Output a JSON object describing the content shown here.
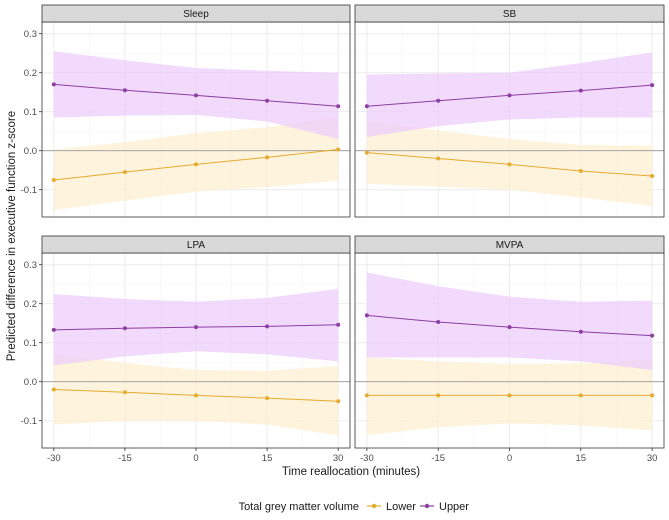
{
  "chart_data": {
    "type": "line",
    "xlabel": "Time reallocation (minutes)",
    "ylabel": "Predicted difference in executive function z-score",
    "x": [
      -30,
      -15,
      0,
      15,
      30
    ],
    "x_tick_labels": [
      "-30",
      "-15",
      "0",
      "15",
      "30"
    ],
    "xlim": [
      -32.5,
      32.5
    ],
    "ylim": [
      -0.17,
      0.33
    ],
    "y_ticks": [
      -0.1,
      0.0,
      0.1,
      0.2,
      0.3
    ],
    "y_tick_labels": [
      "-0.1",
      "0.0",
      "0.1",
      "0.2",
      "0.3"
    ],
    "reference_line": 0,
    "legend": {
      "title": "Total grey matter volume",
      "position": "bottom",
      "entries": [
        {
          "name": "Lower",
          "color": "#e6ab2e"
        },
        {
          "name": "Upper",
          "color": "#8e3da3"
        }
      ]
    },
    "colors": {
      "lower_line": "#e6ab2e",
      "lower_band": "#fdefd2",
      "upper_line": "#8e3da3",
      "upper_band": "#eccdfb",
      "strip_fill": "#d9d9d9",
      "panel_border": "#333333",
      "grid_major": "#ebebeb",
      "grid_minor": "#f5f5f5",
      "zero_line": "#9a9a9a"
    },
    "panels": [
      {
        "title": "Sleep",
        "series": [
          {
            "name": "Upper",
            "values": [
              0.17,
              0.155,
              0.142,
              0.128,
              0.114
            ],
            "lower": [
              0.085,
              0.09,
              0.092,
              0.075,
              0.03
            ],
            "upper": [
              0.255,
              0.232,
              0.212,
              0.205,
              0.2
            ]
          },
          {
            "name": "Lower",
            "values": [
              -0.075,
              -0.055,
              -0.035,
              -0.017,
              0.003
            ],
            "lower": [
              -0.152,
              -0.128,
              -0.105,
              -0.093,
              -0.077
            ],
            "upper": [
              0.003,
              0.022,
              0.045,
              0.06,
              0.086
            ]
          }
        ]
      },
      {
        "title": "SB",
        "series": [
          {
            "name": "Upper",
            "values": [
              0.114,
              0.128,
              0.142,
              0.154,
              0.168
            ],
            "lower": [
              0.035,
              0.063,
              0.08,
              0.085,
              0.085
            ],
            "upper": [
              0.195,
              0.198,
              0.2,
              0.225,
              0.252
            ]
          },
          {
            "name": "Lower",
            "values": [
              -0.005,
              -0.02,
              -0.035,
              -0.052,
              -0.065
            ],
            "lower": [
              -0.085,
              -0.092,
              -0.1,
              -0.12,
              -0.142
            ],
            "upper": [
              0.075,
              0.052,
              0.03,
              0.015,
              0.012
            ]
          }
        ]
      },
      {
        "title": "LPA",
        "series": [
          {
            "name": "Upper",
            "values": [
              0.133,
              0.137,
              0.14,
              0.142,
              0.146
            ],
            "lower": [
              0.042,
              0.065,
              0.078,
              0.07,
              0.052
            ],
            "upper": [
              0.225,
              0.212,
              0.205,
              0.215,
              0.238
            ]
          },
          {
            "name": "Lower",
            "values": [
              -0.02,
              -0.027,
              -0.035,
              -0.042,
              -0.05
            ],
            "lower": [
              -0.11,
              -0.1,
              -0.1,
              -0.11,
              -0.138
            ],
            "upper": [
              0.072,
              0.048,
              0.03,
              0.028,
              0.04
            ]
          }
        ]
      },
      {
        "title": "MVPA",
        "series": [
          {
            "name": "Upper",
            "values": [
              0.17,
              0.153,
              0.14,
              0.128,
              0.118
            ],
            "lower": [
              0.062,
              0.062,
              0.062,
              0.052,
              0.03
            ],
            "upper": [
              0.28,
              0.245,
              0.218,
              0.205,
              0.208
            ]
          },
          {
            "name": "Lower",
            "values": [
              -0.035,
              -0.035,
              -0.035,
              -0.035,
              -0.035
            ],
            "lower": [
              -0.137,
              -0.117,
              -0.107,
              -0.112,
              -0.125
            ],
            "upper": [
              0.062,
              0.052,
              0.045,
              0.047,
              0.058
            ]
          }
        ]
      }
    ]
  }
}
